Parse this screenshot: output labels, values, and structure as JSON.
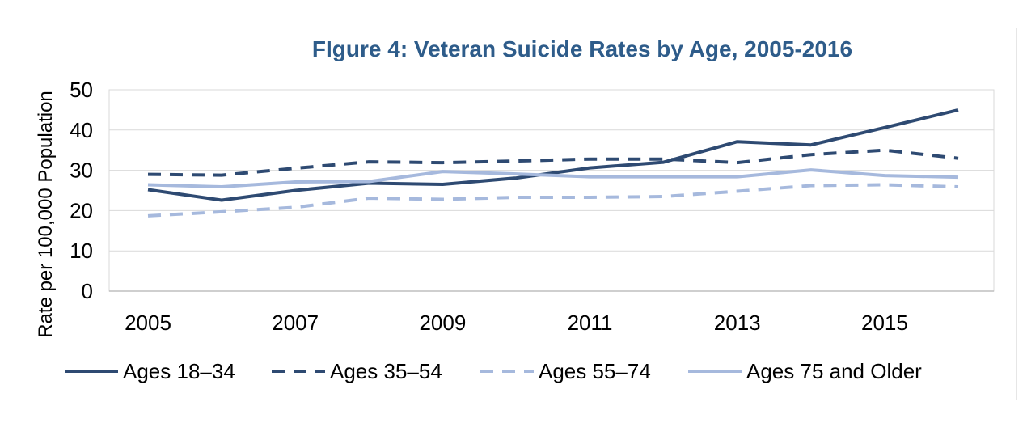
{
  "chart_data": {
    "type": "line",
    "title": "FIgure 4: Veteran Suicide Rates by Age, 2005-2016",
    "xlabel": "",
    "ylabel": "Rate per 100,000 Population",
    "ylim": [
      0,
      50
    ],
    "yticks": [
      "0",
      "10",
      "20",
      "30",
      "40",
      "50"
    ],
    "xlim": [
      2005,
      2016
    ],
    "x": [
      2005,
      2006,
      2007,
      2008,
      2009,
      2010,
      2011,
      2012,
      2013,
      2014,
      2015,
      2016
    ],
    "xticks": [
      "2005",
      "2007",
      "2009",
      "2011",
      "2013",
      "2015"
    ],
    "grid": true,
    "legend": "bottom",
    "series": [
      {
        "name": "Ages 18–34",
        "color": "#2e4a72",
        "dash": "solid",
        "values": [
          25.2,
          22.6,
          25.0,
          26.8,
          26.5,
          28.1,
          30.6,
          32.0,
          37.1,
          36.3,
          40.6,
          45.0
        ]
      },
      {
        "name": "Ages 35–54",
        "color": "#2e4a72",
        "dash": "dashed",
        "values": [
          29.0,
          28.8,
          30.5,
          32.1,
          31.9,
          32.3,
          32.8,
          32.8,
          31.9,
          33.9,
          35.0,
          33.0
        ]
      },
      {
        "name": "Ages 55–74",
        "color": "#a6b9dd",
        "dash": "dashed",
        "values": [
          18.7,
          19.7,
          20.8,
          23.1,
          22.8,
          23.3,
          23.3,
          23.5,
          24.8,
          26.2,
          26.4,
          25.9
        ]
      },
      {
        "name": "Ages 75 and Older",
        "color": "#a6b9dd",
        "dash": "solid",
        "values": [
          26.4,
          25.9,
          27.1,
          27.2,
          29.7,
          29.1,
          28.4,
          28.4,
          28.4,
          30.1,
          28.7,
          28.3
        ]
      }
    ]
  }
}
